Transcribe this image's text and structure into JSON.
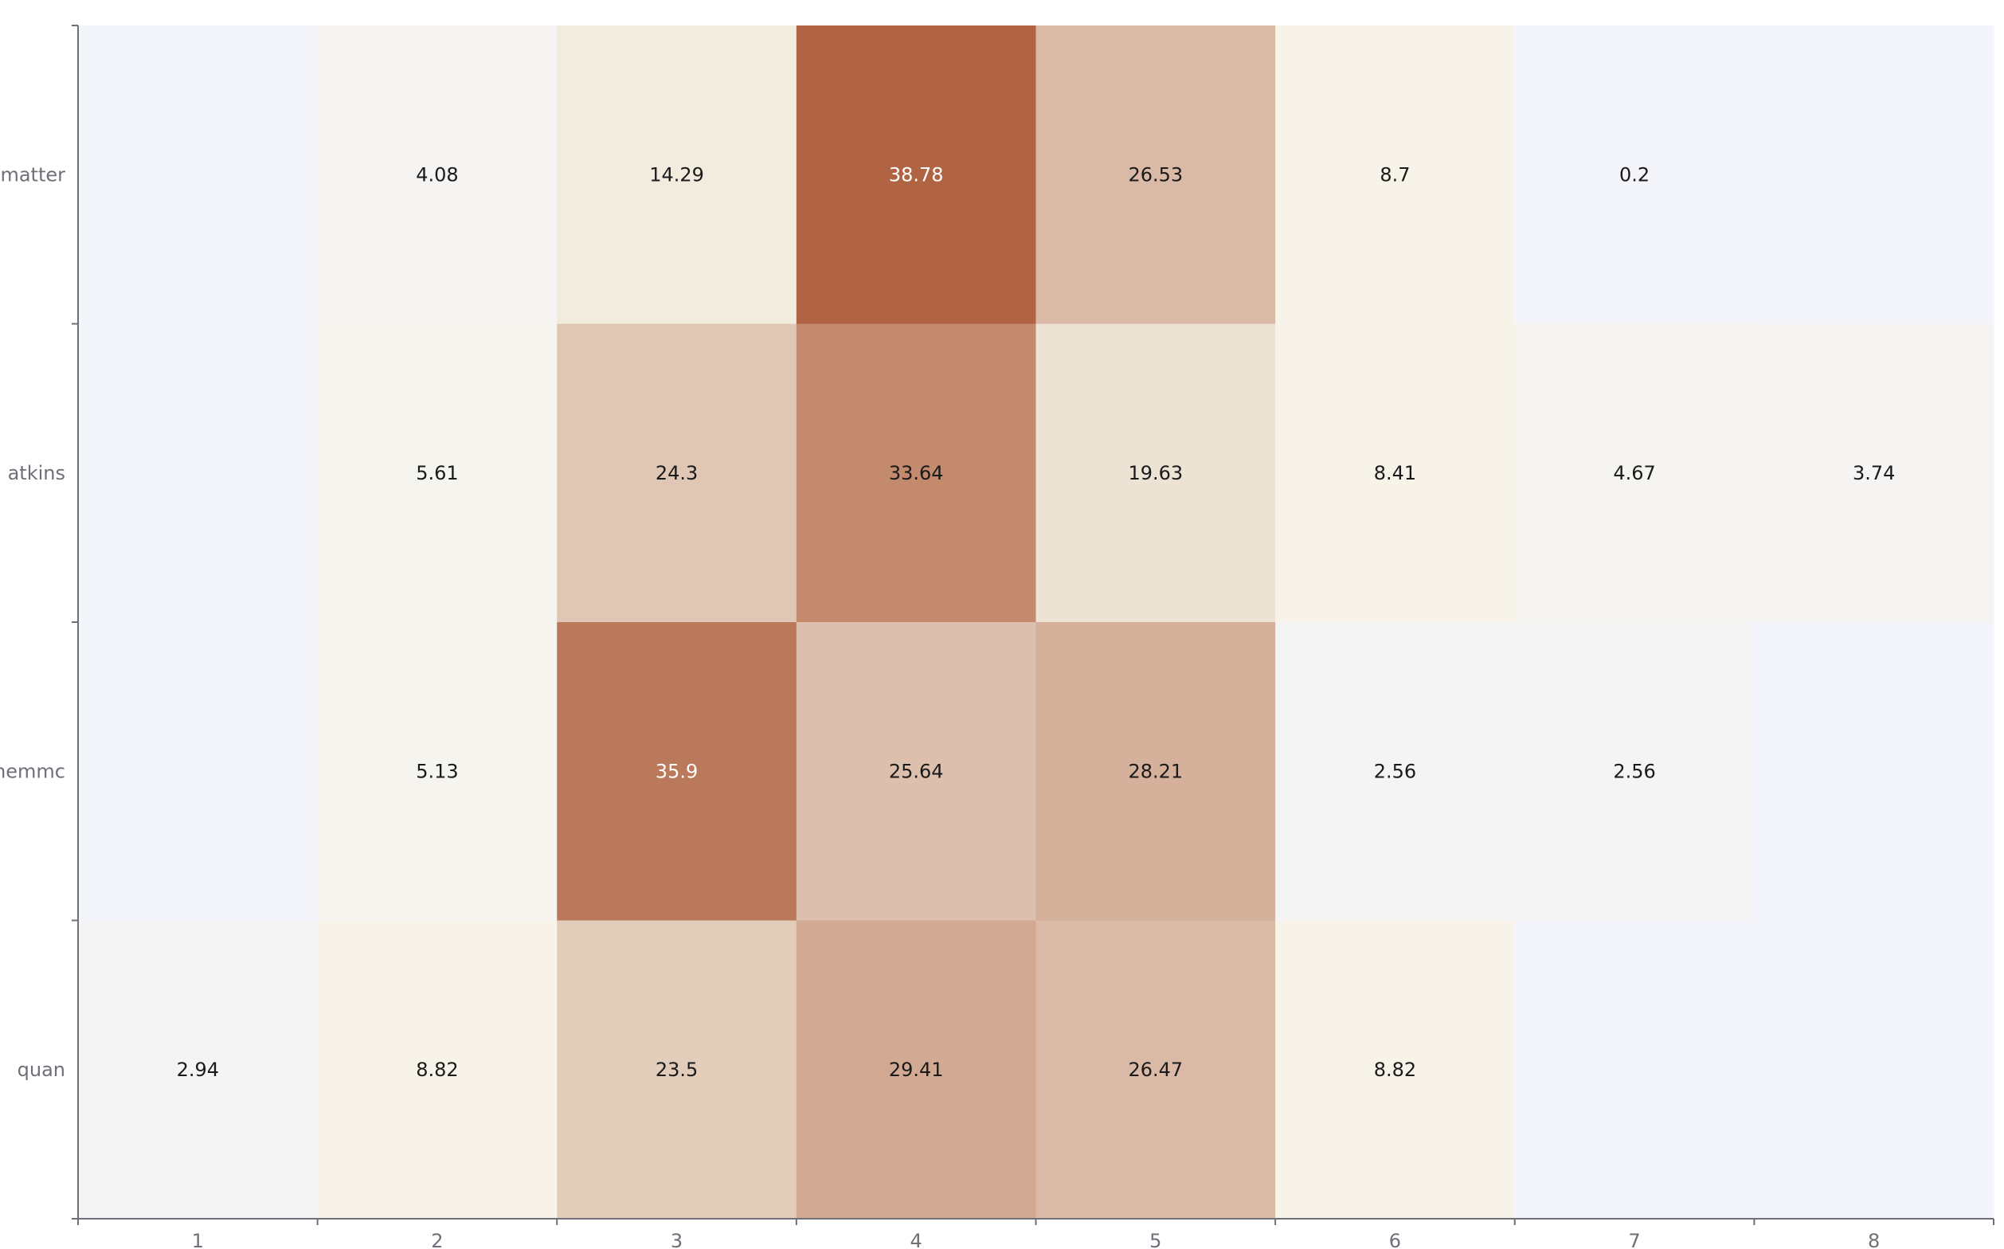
{
  "chart_data": {
    "type": "heatmap",
    "title": "",
    "xlabel": "",
    "ylabel": "",
    "x_categories": [
      "1",
      "2",
      "3",
      "4",
      "5",
      "6",
      "7",
      "8"
    ],
    "y_categories": [
      "matter",
      "atkins",
      "chemmc",
      "quan"
    ],
    "values": [
      [
        0,
        4.08,
        14.29,
        38.78,
        26.53,
        8.7,
        0.2,
        0
      ],
      [
        0,
        5.61,
        24.3,
        33.64,
        19.63,
        8.41,
        4.67,
        3.74
      ],
      [
        0,
        5.13,
        35.9,
        25.64,
        28.21,
        2.56,
        2.56,
        0
      ],
      [
        2.94,
        8.82,
        23.5,
        29.41,
        26.47,
        8.82,
        0,
        0
      ]
    ],
    "show_zero_labels": false,
    "color_scale": {
      "min": 0,
      "max": 38.78,
      "stops": [
        "#f4f5fa",
        "#f7f3e6",
        "#ede4d6",
        "#d3ab95",
        "#b16443"
      ]
    },
    "grid": false,
    "legend": "none"
  }
}
